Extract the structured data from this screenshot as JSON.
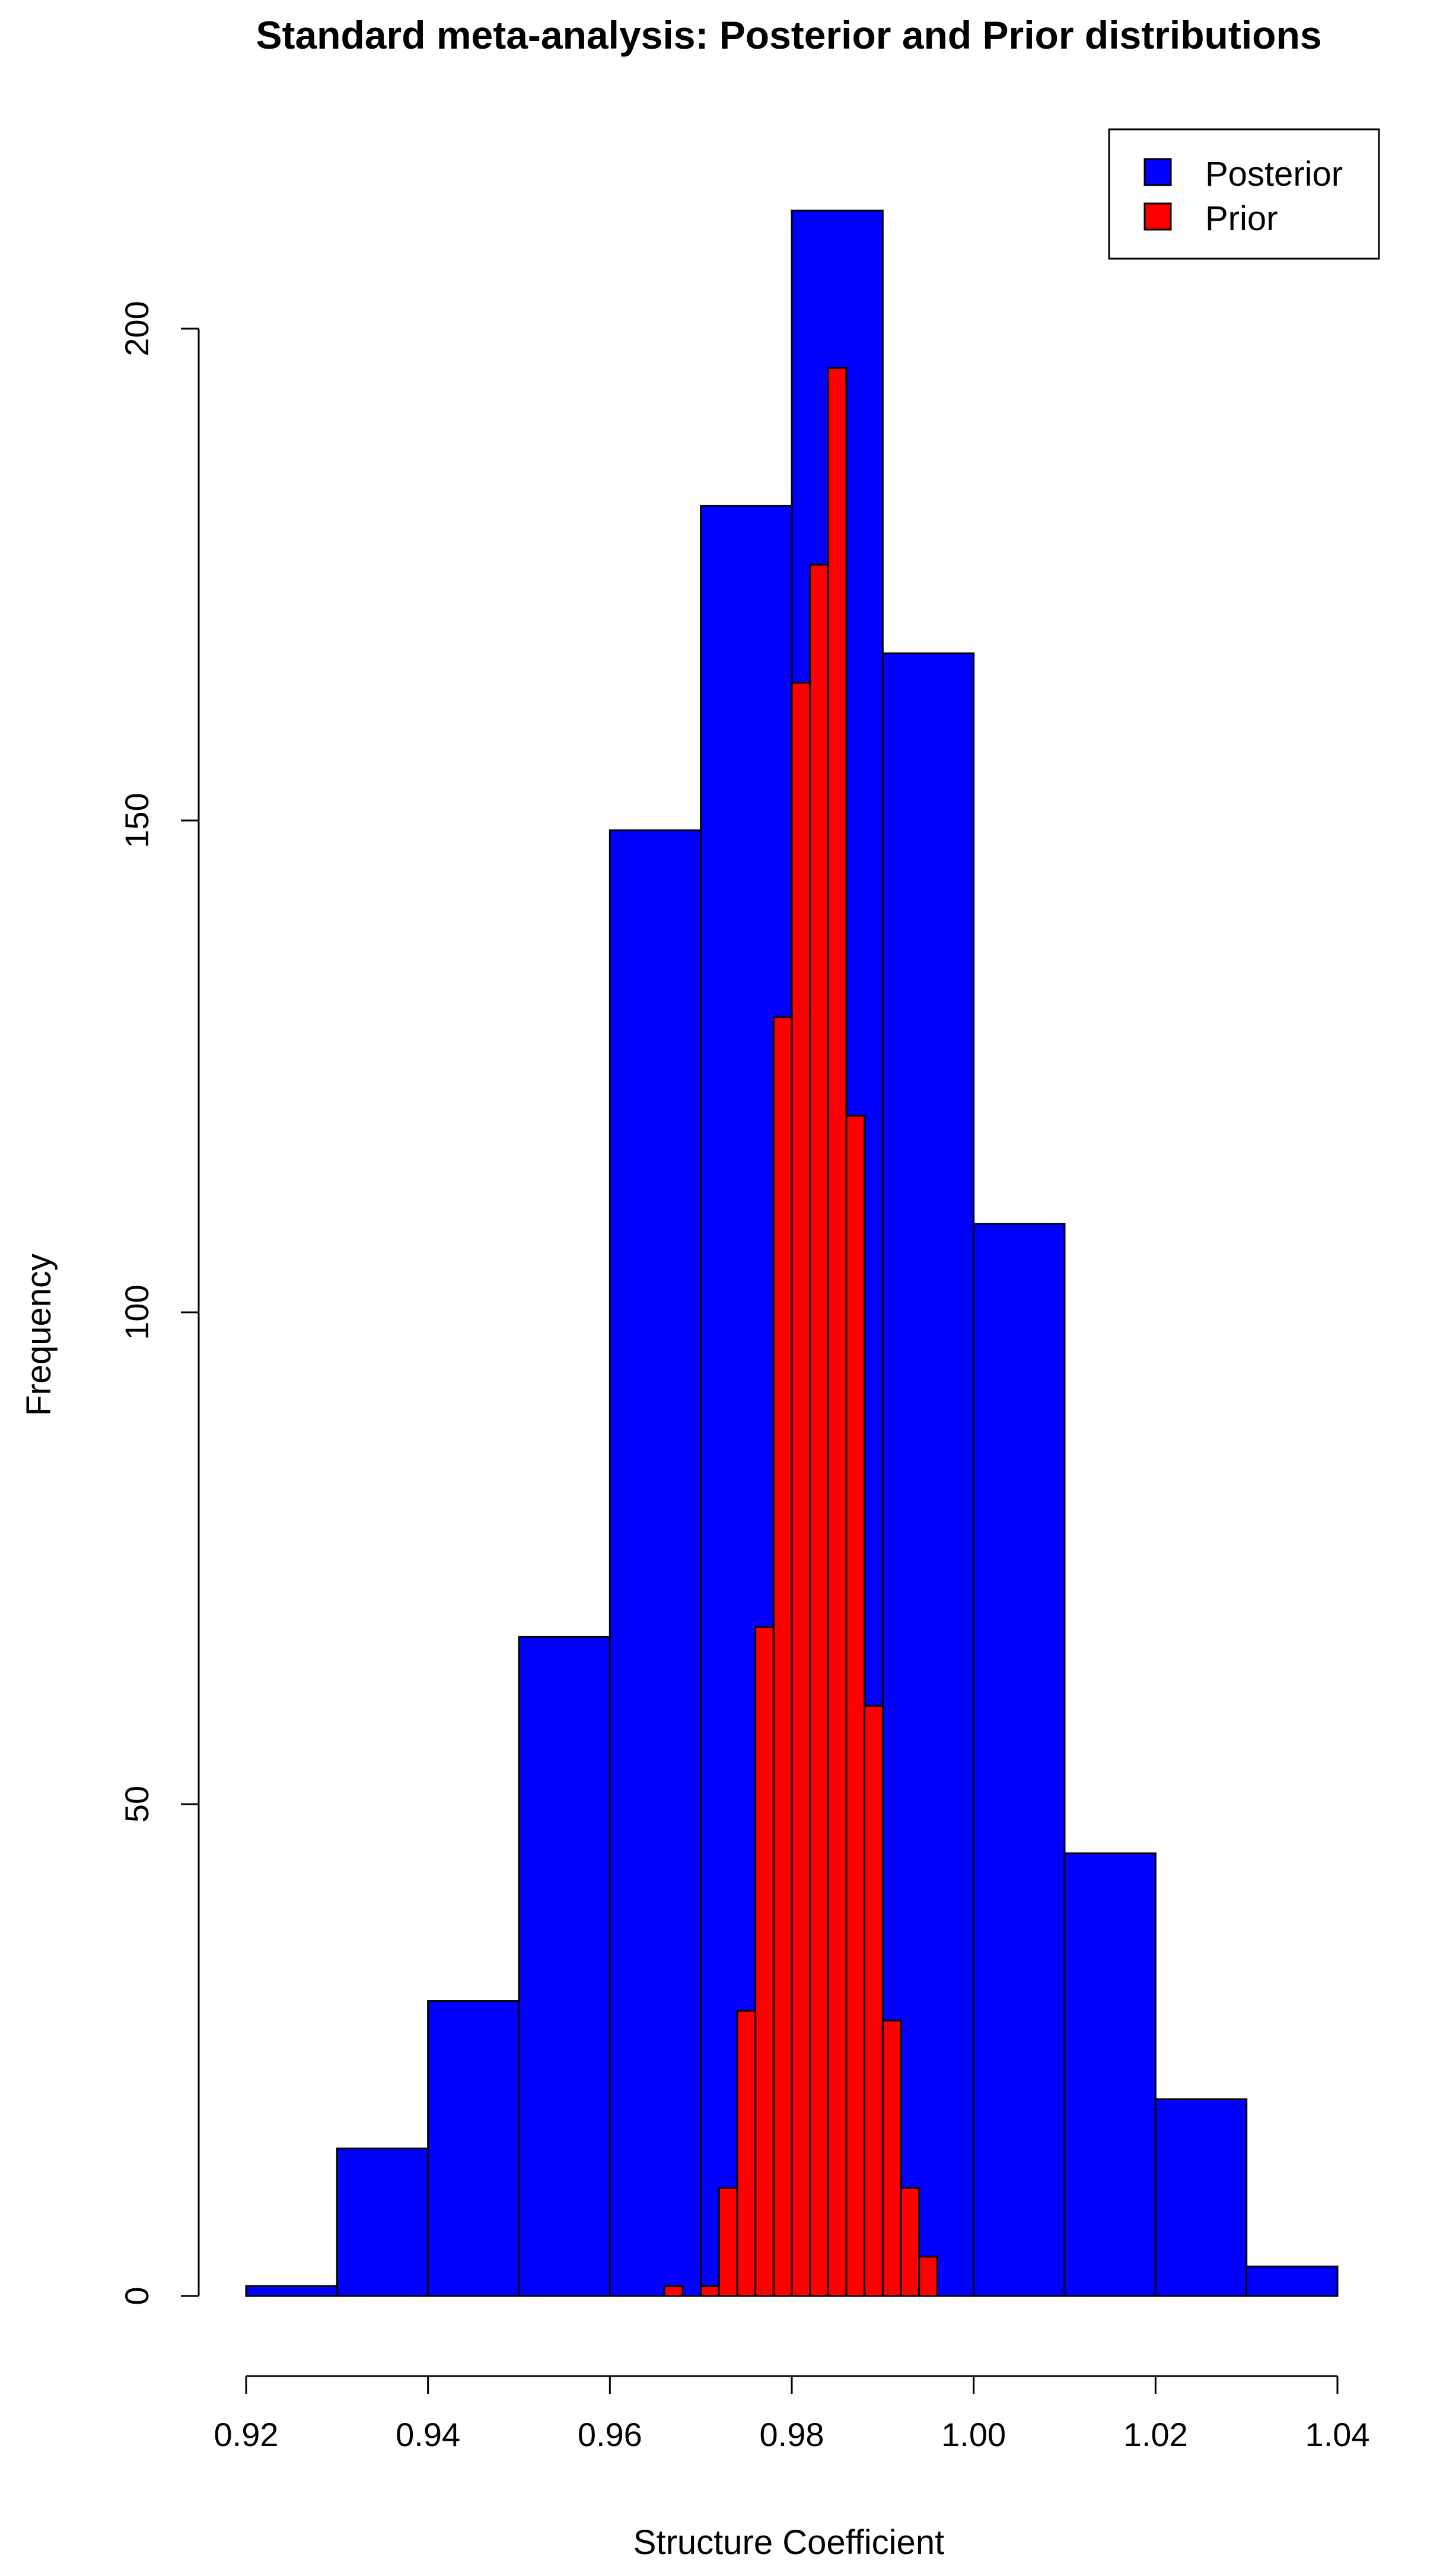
{
  "chart_data": {
    "type": "bar",
    "subtype": "overlaid-histogram",
    "title": "Standard meta-analysis: Posterior and Prior distributions",
    "xlabel": "Structure Coefficient",
    "ylabel": "Frequency",
    "xlim": [
      0.92,
      1.04
    ],
    "ylim": [
      0,
      212
    ],
    "x_ticks": [
      0.92,
      0.94,
      0.96,
      0.98,
      1.0,
      1.02,
      1.04
    ],
    "x_tick_labels": [
      "0.92",
      "0.94",
      "0.96",
      "0.98",
      "1.00",
      "1.02",
      "1.04"
    ],
    "y_ticks": [
      0,
      50,
      100,
      150,
      200
    ],
    "y_tick_labels": [
      "0",
      "50",
      "100",
      "150",
      "200"
    ],
    "legend_position": "top-right",
    "grid": false,
    "series": [
      {
        "name": "Posterior",
        "color": "#0000ff",
        "bins": [
          [
            0.92,
            0.93,
            1
          ],
          [
            0.93,
            0.94,
            15
          ],
          [
            0.94,
            0.95,
            30
          ],
          [
            0.95,
            0.96,
            67
          ],
          [
            0.96,
            0.97,
            149
          ],
          [
            0.97,
            0.98,
            182
          ],
          [
            0.98,
            0.99,
            212
          ],
          [
            0.99,
            1.0,
            167
          ],
          [
            1.0,
            1.01,
            109
          ],
          [
            1.01,
            1.02,
            45
          ],
          [
            1.02,
            1.03,
            20
          ],
          [
            1.03,
            1.04,
            3
          ]
        ]
      },
      {
        "name": "Prior",
        "color": "#ff0000",
        "bins": [
          [
            0.966,
            0.968,
            1
          ],
          [
            0.968,
            0.97,
            0
          ],
          [
            0.97,
            0.972,
            1
          ],
          [
            0.972,
            0.974,
            11
          ],
          [
            0.974,
            0.976,
            29
          ],
          [
            0.976,
            0.978,
            68
          ],
          [
            0.978,
            0.98,
            130
          ],
          [
            0.98,
            0.982,
            164
          ],
          [
            0.982,
            0.984,
            176
          ],
          [
            0.984,
            0.986,
            196
          ],
          [
            0.986,
            0.988,
            120
          ],
          [
            0.988,
            0.99,
            60
          ],
          [
            0.99,
            0.992,
            28
          ],
          [
            0.992,
            0.994,
            11
          ],
          [
            0.994,
            0.996,
            4
          ]
        ]
      }
    ]
  }
}
